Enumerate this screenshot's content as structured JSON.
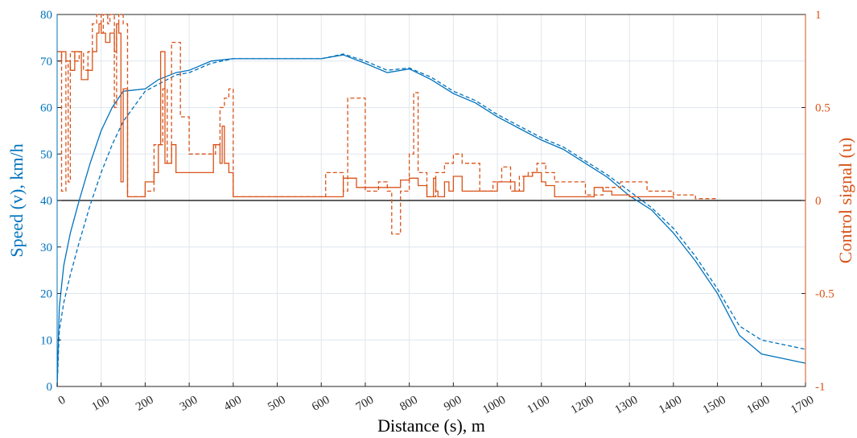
{
  "chart_data": {
    "type": "line",
    "xlabel": "Distance (s), m",
    "ylabel_left": "Speed (v), km/h",
    "ylabel_right": "Control signal (u)",
    "xlim": [
      0,
      1700
    ],
    "ylim_left": [
      0,
      80
    ],
    "ylim_right": [
      -1,
      1
    ],
    "grid": true,
    "x_ticks": [
      "0",
      "100",
      "200",
      "300",
      "400",
      "500",
      "600",
      "700",
      "800",
      "900",
      "1000",
      "1100",
      "1200",
      "1300",
      "1400",
      "1500",
      "1600",
      "1700"
    ],
    "y_left_ticks": [
      "0",
      "10",
      "20",
      "30",
      "40",
      "50",
      "60",
      "70",
      "80"
    ],
    "y_right_ticks": [
      "-1",
      "-0.5",
      "0",
      "0.5",
      "1"
    ],
    "colors": {
      "speed": "#0072BD",
      "control": "#D95319",
      "zero_line": "#000000",
      "grid": "#dfe6ee"
    },
    "series": [
      {
        "axis": "left",
        "style": "solid",
        "color": "#0072BD",
        "x": [
          0,
          5,
          15,
          30,
          50,
          75,
          100,
          125,
          150,
          200,
          230,
          270,
          300,
          350,
          400,
          500,
          600,
          650,
          700,
          750,
          800,
          850,
          900,
          950,
          1000,
          1050,
          1100,
          1150,
          1200,
          1250,
          1300,
          1350,
          1400,
          1450,
          1500,
          1550,
          1600,
          1650,
          1700
        ],
        "y": [
          0,
          17,
          26,
          33,
          40,
          48,
          55,
          60,
          63.5,
          64,
          66,
          67.5,
          68,
          70,
          70.5,
          70.5,
          70.5,
          71.3,
          69.5,
          67.5,
          68.3,
          66,
          63,
          61,
          58,
          55.5,
          53,
          51,
          48,
          45,
          41,
          38,
          33,
          27,
          20,
          11,
          7,
          6,
          5
        ]
      },
      {
        "axis": "left",
        "style": "dashed",
        "color": "#0072BD",
        "x": [
          0,
          5,
          15,
          30,
          50,
          75,
          100,
          125,
          150,
          200,
          230,
          270,
          300,
          350,
          400,
          500,
          600,
          650,
          700,
          750,
          800,
          850,
          900,
          950,
          1000,
          1050,
          1100,
          1150,
          1200,
          1250,
          1300,
          1350,
          1400,
          1450,
          1500,
          1550,
          1600,
          1650,
          1700
        ],
        "y": [
          0,
          12,
          18,
          24,
          31,
          39,
          46,
          52,
          57,
          63.5,
          65,
          67,
          67.5,
          69.5,
          70.5,
          70.5,
          70.5,
          71.5,
          70,
          68,
          68.5,
          66.5,
          63.5,
          61.5,
          58.5,
          56,
          53.5,
          51.5,
          48.5,
          45.5,
          42,
          38.5,
          34,
          28,
          21,
          13,
          10,
          9,
          8
        ]
      },
      {
        "axis": "right",
        "style": "solid",
        "color": "#D95319",
        "x": [
          0,
          10,
          20,
          30,
          40,
          55,
          70,
          80,
          90,
          95,
          100,
          110,
          120,
          130,
          135,
          140,
          145,
          150,
          160,
          200,
          220,
          230,
          235,
          245,
          260,
          270,
          300,
          350,
          355,
          370,
          375,
          380,
          390,
          400,
          600,
          650,
          680,
          700,
          750,
          780,
          800,
          820,
          840,
          855,
          860,
          865,
          880,
          890,
          900,
          920,
          960,
          1000,
          1040,
          1060,
          1080,
          1100,
          1110,
          1130,
          1200,
          1220,
          1240,
          1260,
          1300,
          1400
        ],
        "y": [
          0.75,
          0.8,
          0.75,
          0.7,
          0.8,
          0.65,
          0.7,
          0.8,
          0.9,
          0.95,
          0.9,
          0.85,
          0.9,
          0.8,
          0.95,
          0.9,
          0.1,
          0.6,
          0.02,
          0.1,
          0.15,
          0.3,
          0.8,
          0.2,
          0.3,
          0.15,
          0.15,
          0.15,
          0.3,
          0.2,
          0.4,
          0.2,
          0.15,
          0.02,
          0.02,
          0.12,
          0.07,
          0.07,
          0.07,
          0.11,
          0.12,
          0.08,
          0.02,
          0.12,
          0.05,
          0.02,
          0.1,
          0.05,
          0.13,
          0.05,
          0.05,
          0.1,
          0.05,
          0.13,
          0.15,
          0.1,
          0.08,
          0.02,
          0.02,
          0.07,
          0.05,
          0.03,
          0.02,
          0.01
        ]
      },
      {
        "axis": "right",
        "style": "dashed",
        "color": "#D95319",
        "x": [
          0,
          10,
          20,
          25,
          30,
          40,
          50,
          60,
          70,
          80,
          90,
          100,
          105,
          115,
          120,
          130,
          135,
          140,
          150,
          160,
          200,
          220,
          240,
          250,
          260,
          280,
          300,
          340,
          360,
          370,
          380,
          390,
          400,
          600,
          610,
          650,
          660,
          700,
          730,
          750,
          760,
          780,
          800,
          810,
          820,
          840,
          860,
          880,
          900,
          920,
          960,
          990,
          1010,
          1030,
          1050,
          1070,
          1090,
          1110,
          1130,
          1200,
          1240,
          1280,
          1340,
          1400,
          1450,
          1500
        ],
        "y": [
          0.8,
          0.05,
          0.75,
          0.1,
          0.8,
          0.75,
          0.8,
          0.7,
          0.8,
          0.95,
          1,
          0.9,
          1,
          0.95,
          1,
          0.5,
          0.95,
          1,
          0.95,
          0.02,
          0.05,
          0.3,
          0.6,
          0.2,
          0.85,
          0.45,
          0.25,
          0.25,
          0.3,
          0.5,
          0.55,
          0.6,
          0.02,
          0.02,
          0.15,
          0.05,
          0.55,
          0.05,
          0.1,
          0.05,
          -0.18,
          0.05,
          0.25,
          0.58,
          0.15,
          0.02,
          0.15,
          0.2,
          0.25,
          0.2,
          0.05,
          0.1,
          0.18,
          0.05,
          0.13,
          0.15,
          0.2,
          0.15,
          0.1,
          0.03,
          0.07,
          0.1,
          0.05,
          0.03,
          0.01,
          0.01
        ]
      }
    ]
  }
}
